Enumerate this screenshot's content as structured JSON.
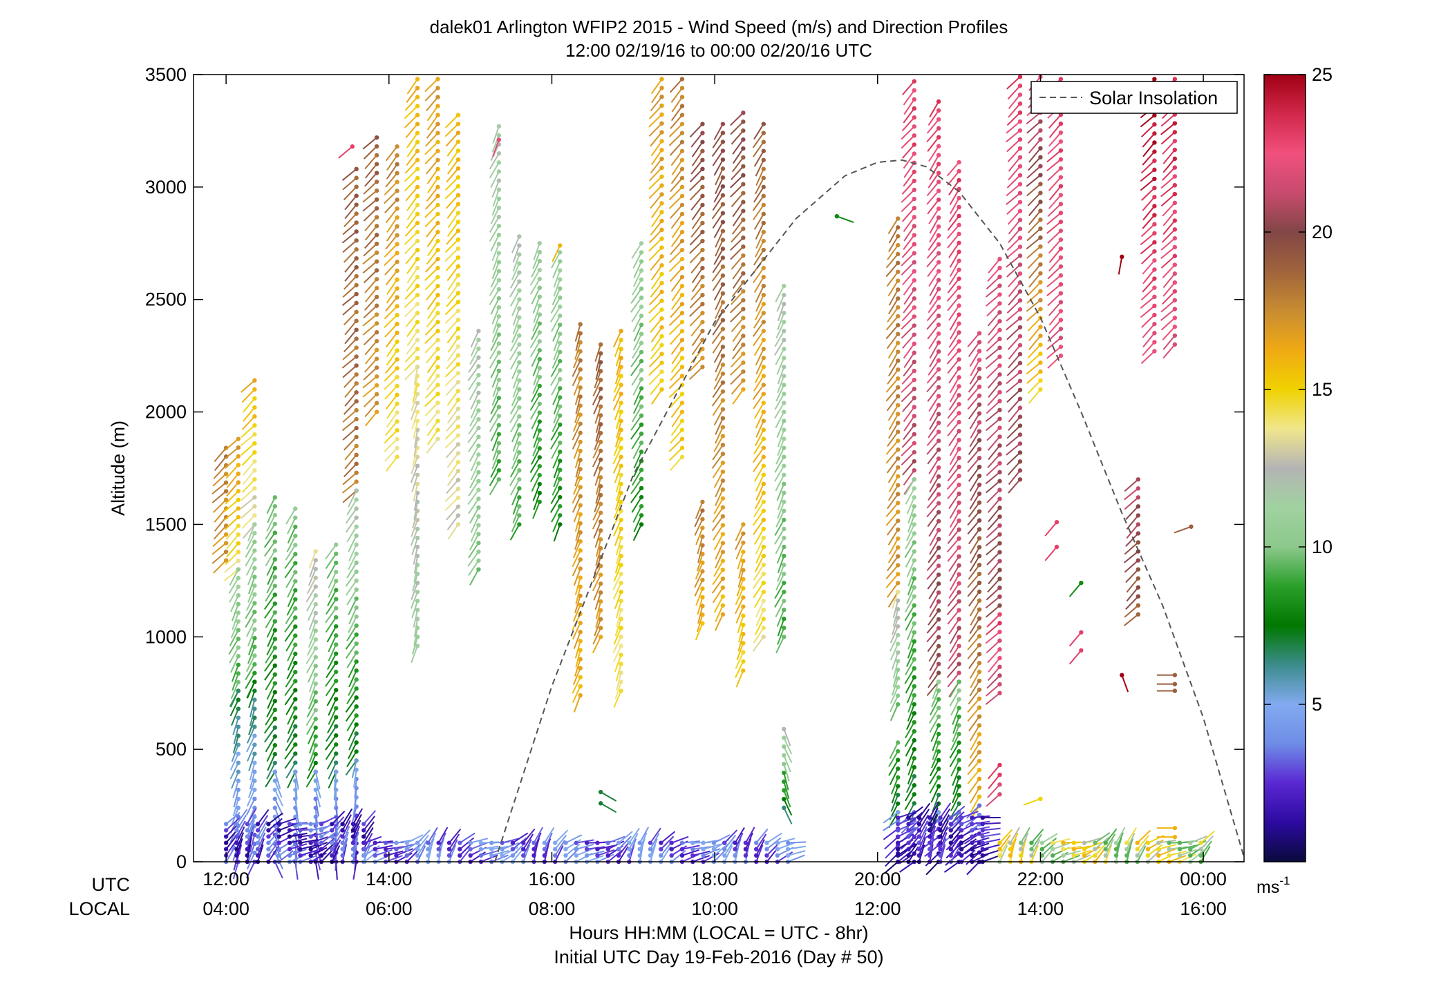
{
  "chart_data": {
    "type": "scatter",
    "title_line1": "dalek01 Arlington WFIP2 2015 - Wind Speed (m/s) and Direction Profiles",
    "title_line2": "12:00 02/19/16 to 00:00 02/20/16  UTC",
    "ylabel": "Altitude (m)",
    "xlabel_line1": "Hours HH:MM  (LOCAL = UTC - 8hr)",
    "xlabel_line2": "Initial UTC Day 19-Feb-2016 (Day # 50)",
    "utc_row_label": "UTC",
    "local_row_label": "LOCAL",
    "xlim_hours": [
      11.6,
      24.5
    ],
    "ylim": [
      0,
      3500
    ],
    "y_ticks": [
      0,
      500,
      1000,
      1500,
      2000,
      2500,
      3000,
      3500
    ],
    "x_ticks": [
      {
        "h": 12,
        "utc": "12:00",
        "local": "04:00"
      },
      {
        "h": 14,
        "utc": "14:00",
        "local": "06:00"
      },
      {
        "h": 16,
        "utc": "16:00",
        "local": "08:00"
      },
      {
        "h": 18,
        "utc": "18:00",
        "local": "10:00"
      },
      {
        "h": 20,
        "utc": "20:00",
        "local": "12:00"
      },
      {
        "h": 22,
        "utc": "22:00",
        "local": "14:00"
      },
      {
        "h": 24,
        "utc": "00:00",
        "local": "16:00"
      }
    ],
    "legend": {
      "label": "Solar Insolation",
      "position": "top-right",
      "style": "dashed"
    },
    "colorbar": {
      "range": [
        0,
        25
      ],
      "ticks": [
        5,
        10,
        15,
        20,
        25
      ],
      "unit_base": "ms",
      "unit_exp": "-1",
      "stops": [
        "#0a0a3c",
        "#2c0aa0",
        "#5a28d2",
        "#6e8ce6",
        "#82aaf0",
        "#3c8c8c",
        "#007800",
        "#2aa02a",
        "#8cc88c",
        "#a0d2a0",
        "#b4b4b4",
        "#f0e68c",
        "#f0d200",
        "#f0aa14",
        "#c88c32",
        "#a0643c",
        "#824646",
        "#c84b6e",
        "#f0507d",
        "#d2284b",
        "#a00014"
      ]
    },
    "solar_insolation": {
      "description_none": "",
      "x": [
        15.3,
        16.0,
        17.0,
        18.0,
        19.0,
        19.6,
        20.0,
        20.3,
        20.6,
        21.0,
        21.5,
        22.0,
        22.5,
        23.0,
        23.5,
        24.0,
        24.5
      ],
      "y": [
        0,
        780,
        1720,
        2400,
        2860,
        3050,
        3110,
        3120,
        3090,
        2980,
        2750,
        2420,
        2000,
        1550,
        1140,
        640,
        20
      ]
    },
    "profiles": [
      {
        "t": 12.0,
        "z0": 1340,
        "z1": 1840,
        "s0": 17,
        "s1": 18,
        "dir": 225
      },
      {
        "t": 12.15,
        "z0": 1300,
        "z1": 1880,
        "s0": 14,
        "s1": 17,
        "dir": 225
      },
      {
        "t": 12.15,
        "z0": 760,
        "z1": 1300,
        "s0": 9,
        "s1": 11,
        "dir": 205
      },
      {
        "t": 12.15,
        "z0": 0,
        "z1": 760,
        "s0": 3,
        "s1": 7,
        "dir": 200
      },
      {
        "t": 12.35,
        "z0": 1500,
        "z1": 2140,
        "s0": 13,
        "s1": 16,
        "dir": 225
      },
      {
        "t": 12.35,
        "z0": 800,
        "z1": 1500,
        "s0": 9,
        "s1": 11,
        "dir": 205
      },
      {
        "t": 12.35,
        "z0": 0,
        "z1": 800,
        "s0": 3,
        "s1": 7,
        "dir": 200
      },
      {
        "t": 12.6,
        "z0": 400,
        "z1": 1620,
        "s0": 7,
        "s1": 10,
        "dir": 210
      },
      {
        "t": 12.6,
        "z0": 0,
        "z1": 400,
        "s0": 3,
        "s1": 5,
        "dir": 160
      },
      {
        "t": 12.85,
        "z0": 400,
        "z1": 1570,
        "s0": 7,
        "s1": 10,
        "dir": 210
      },
      {
        "t": 12.85,
        "z0": 0,
        "z1": 400,
        "s0": 3,
        "s1": 5,
        "dir": 170
      },
      {
        "t": 13.1,
        "z0": 400,
        "z1": 1380,
        "s0": 8,
        "s1": 13,
        "dir": 205
      },
      {
        "t": 13.1,
        "z0": 0,
        "z1": 400,
        "s0": 2,
        "s1": 5,
        "dir": 170
      },
      {
        "t": 13.35,
        "z0": 400,
        "z1": 1410,
        "s0": 7,
        "s1": 10,
        "dir": 210
      },
      {
        "t": 13.35,
        "z0": 0,
        "z1": 400,
        "s0": 2,
        "s1": 5,
        "dir": 180
      },
      {
        "t": 13.6,
        "z0": 1650,
        "z1": 3080,
        "s0": 18,
        "s1": 19,
        "dir": 225
      },
      {
        "t": 13.6,
        "z0": 450,
        "z1": 1650,
        "s0": 7,
        "s1": 12,
        "dir": 210
      },
      {
        "t": 13.6,
        "z0": 0,
        "z1": 450,
        "s0": 2,
        "s1": 5,
        "dir": 190
      },
      {
        "t": 13.85,
        "z0": 2000,
        "z1": 3220,
        "s0": 17,
        "s1": 19,
        "dir": 225
      },
      {
        "t": 14.1,
        "z0": 1800,
        "z1": 3180,
        "s0": 14,
        "s1": 18,
        "dir": 220
      },
      {
        "t": 14.35,
        "z0": 2200,
        "z1": 3480,
        "s0": 14,
        "s1": 16,
        "dir": 220
      },
      {
        "t": 14.35,
        "z0": 960,
        "z1": 2200,
        "s0": 11,
        "s1": 14,
        "dir": 195
      },
      {
        "t": 14.6,
        "z0": 1880,
        "z1": 3480,
        "s0": 14,
        "s1": 17,
        "dir": 220
      },
      {
        "t": 14.85,
        "z0": 1500,
        "z1": 3320,
        "s0": 13,
        "s1": 16,
        "dir": 220
      },
      {
        "t": 15.1,
        "z0": 1300,
        "z1": 2360,
        "s0": 10,
        "s1": 12,
        "dir": 210
      },
      {
        "t": 15.35,
        "z0": 1700,
        "z1": 3270,
        "s0": 9,
        "s1": 12,
        "dir": 205
      },
      {
        "t": 15.6,
        "z0": 1500,
        "z1": 2780,
        "s0": 9,
        "s1": 12,
        "dir": 205
      },
      {
        "t": 15.85,
        "z0": 1600,
        "z1": 2750,
        "s0": 8,
        "s1": 11,
        "dir": 205
      },
      {
        "t": 16.1,
        "z0": 1500,
        "z1": 2710,
        "s0": 8,
        "s1": 11,
        "dir": 205
      },
      {
        "t": 16.35,
        "z0": 740,
        "z1": 2390,
        "s0": 16,
        "s1": 18,
        "dir": 200
      },
      {
        "t": 16.6,
        "z0": 1000,
        "z1": 2300,
        "s0": 17,
        "s1": 19,
        "dir": 200
      },
      {
        "t": 16.85,
        "z0": 760,
        "z1": 2360,
        "s0": 14,
        "s1": 16,
        "dir": 200
      },
      {
        "t": 17.1,
        "z0": 1500,
        "z1": 2750,
        "s0": 8,
        "s1": 11,
        "dir": 210
      },
      {
        "t": 17.35,
        "z0": 2100,
        "z1": 3480,
        "s0": 15,
        "s1": 17,
        "dir": 220
      },
      {
        "t": 17.6,
        "z0": 1800,
        "z1": 3480,
        "s0": 15,
        "s1": 18,
        "dir": 220
      },
      {
        "t": 17.85,
        "z0": 2200,
        "z1": 3280,
        "s0": 17,
        "s1": 20,
        "dir": 220
      },
      {
        "t": 17.85,
        "z0": 1060,
        "z1": 1600,
        "s0": 16,
        "s1": 18,
        "dir": 200
      },
      {
        "t": 18.1,
        "z0": 1100,
        "z1": 3280,
        "s0": 16,
        "s1": 20,
        "dir": 210
      },
      {
        "t": 18.35,
        "z0": 2100,
        "z1": 3330,
        "s0": 17,
        "s1": 20,
        "dir": 220
      },
      {
        "t": 18.35,
        "z0": 850,
        "z1": 1500,
        "s0": 15,
        "s1": 17,
        "dir": 200
      },
      {
        "t": 18.6,
        "z0": 1000,
        "z1": 3280,
        "s0": 14,
        "s1": 19,
        "dir": 210
      },
      {
        "t": 18.85,
        "z0": 1000,
        "z1": 2560,
        "s0": 9,
        "s1": 12,
        "dir": 205
      },
      {
        "t": 18.85,
        "z0": 240,
        "z1": 590,
        "s0": 7,
        "s1": 12,
        "dir": 160
      },
      {
        "t": 20.25,
        "z0": 1200,
        "z1": 2860,
        "s0": 17,
        "s1": 18,
        "dir": 215
      },
      {
        "t": 20.25,
        "z0": 700,
        "z1": 1200,
        "s0": 10,
        "s1": 13,
        "dir": 200
      },
      {
        "t": 20.25,
        "z0": 220,
        "z1": 530,
        "s0": 7,
        "s1": 9,
        "dir": 205
      },
      {
        "t": 20.25,
        "z0": 0,
        "z1": 220,
        "s0": 1,
        "s1": 4,
        "dir": 230
      },
      {
        "t": 20.45,
        "z0": 1700,
        "z1": 3470,
        "s0": 21,
        "s1": 23,
        "dir": 220
      },
      {
        "t": 20.45,
        "z0": 220,
        "z1": 1700,
        "s0": 7,
        "s1": 11,
        "dir": 205
      },
      {
        "t": 20.45,
        "z0": 0,
        "z1": 220,
        "s0": 1,
        "s1": 4,
        "dir": 230
      },
      {
        "t": 20.75,
        "z0": 800,
        "z1": 3380,
        "s0": 20,
        "s1": 23,
        "dir": 215
      },
      {
        "t": 20.75,
        "z0": 220,
        "z1": 800,
        "s0": 7,
        "s1": 10,
        "dir": 205
      },
      {
        "t": 20.75,
        "z0": 0,
        "z1": 220,
        "s0": 1,
        "s1": 4,
        "dir": 230
      },
      {
        "t": 21.0,
        "z0": 800,
        "z1": 3110,
        "s0": 21,
        "s1": 23,
        "dir": 215
      },
      {
        "t": 21.0,
        "z0": 220,
        "z1": 800,
        "s0": 7,
        "s1": 10,
        "dir": 205
      },
      {
        "t": 21.0,
        "z0": 0,
        "z1": 220,
        "s0": 1,
        "s1": 4,
        "dir": 230
      },
      {
        "t": 21.25,
        "z0": 250,
        "z1": 2350,
        "s0": 16,
        "s1": 22,
        "dir": 215
      },
      {
        "t": 21.25,
        "z0": 0,
        "z1": 250,
        "s0": 1,
        "s1": 4,
        "dir": 230
      },
      {
        "t": 21.5,
        "z0": 1100,
        "z1": 2680,
        "s0": 20,
        "s1": 22,
        "dir": 225
      },
      {
        "t": 21.5,
        "z0": 750,
        "z1": 1100,
        "s0": 21,
        "s1": 23,
        "dir": 225
      },
      {
        "t": 21.5,
        "z0": 300,
        "z1": 430,
        "s0": 22,
        "s1": 23,
        "dir": 225
      },
      {
        "t": 21.75,
        "z0": 1700,
        "z1": 3490,
        "s0": 20,
        "s1": 23,
        "dir": 225
      },
      {
        "t": 22.0,
        "z0": 2100,
        "z1": 3490,
        "s0": 15,
        "s1": 22,
        "dir": 225
      },
      {
        "t": 22.25,
        "z0": 2250,
        "z1": 3480,
        "s0": 22,
        "s1": 23,
        "dir": 225
      },
      {
        "t": 23.2,
        "z0": 1100,
        "z1": 1700,
        "s0": 19,
        "s1": 21,
        "dir": 225
      },
      {
        "t": 23.4,
        "z0": 2270,
        "z1": 3480,
        "s0": 22,
        "s1": 25,
        "dir": 225
      },
      {
        "t": 23.65,
        "z0": 2300,
        "z1": 3480,
        "s0": 22,
        "s1": 24,
        "dir": 225
      }
    ],
    "low_layer_segments": [
      {
        "t0": 12.0,
        "t1": 13.7,
        "z0": 0,
        "z1": 170,
        "s0": 1,
        "s1": 4
      },
      {
        "t0": 13.7,
        "t1": 18.95,
        "z0": 0,
        "z1": 90,
        "s0": 2,
        "s1": 5
      },
      {
        "t0": 20.25,
        "t1": 21.4,
        "z0": 0,
        "z1": 200,
        "s0": 1,
        "s1": 3
      },
      {
        "t0": 21.5,
        "t1": 24.0,
        "z0": 0,
        "z1": 90,
        "s0": 9,
        "s1": 16
      }
    ],
    "isolated_barbs": [
      {
        "t": 13.55,
        "z": 3180,
        "s": 23,
        "dir": 230
      },
      {
        "t": 15.35,
        "z": 3210,
        "s": 22,
        "dir": 200
      },
      {
        "t": 16.1,
        "z": 2740,
        "s": 16,
        "dir": 205
      },
      {
        "t": 16.6,
        "z": 310,
        "s": 7,
        "dir": 120
      },
      {
        "t": 16.6,
        "z": 260,
        "s": 7,
        "dir": 120
      },
      {
        "t": 19.5,
        "z": 2870,
        "s": 8,
        "dir": 110
      },
      {
        "t": 22.2,
        "z": 1510,
        "s": 23,
        "dir": 220
      },
      {
        "t": 22.2,
        "z": 1400,
        "s": 23,
        "dir": 220
      },
      {
        "t": 22.5,
        "z": 1240,
        "s": 8,
        "dir": 220
      },
      {
        "t": 22.5,
        "z": 1020,
        "s": 23,
        "dir": 220
      },
      {
        "t": 22.5,
        "z": 940,
        "s": 23,
        "dir": 220
      },
      {
        "t": 22.0,
        "z": 280,
        "s": 15,
        "dir": 250
      },
      {
        "t": 23.0,
        "z": 2690,
        "s": 25,
        "dir": 190
      },
      {
        "t": 23.0,
        "z": 830,
        "s": 25,
        "dir": 160
      },
      {
        "t": 23.65,
        "z": 830,
        "s": 19,
        "dir": 270
      },
      {
        "t": 23.65,
        "z": 790,
        "s": 19,
        "dir": 270
      },
      {
        "t": 23.65,
        "z": 760,
        "s": 19,
        "dir": 270
      },
      {
        "t": 23.65,
        "z": 150,
        "s": 16,
        "dir": 270
      },
      {
        "t": 23.65,
        "z": 110,
        "s": 16,
        "dir": 270
      },
      {
        "t": 23.85,
        "z": 1490,
        "s": 19,
        "dir": 250
      }
    ]
  }
}
